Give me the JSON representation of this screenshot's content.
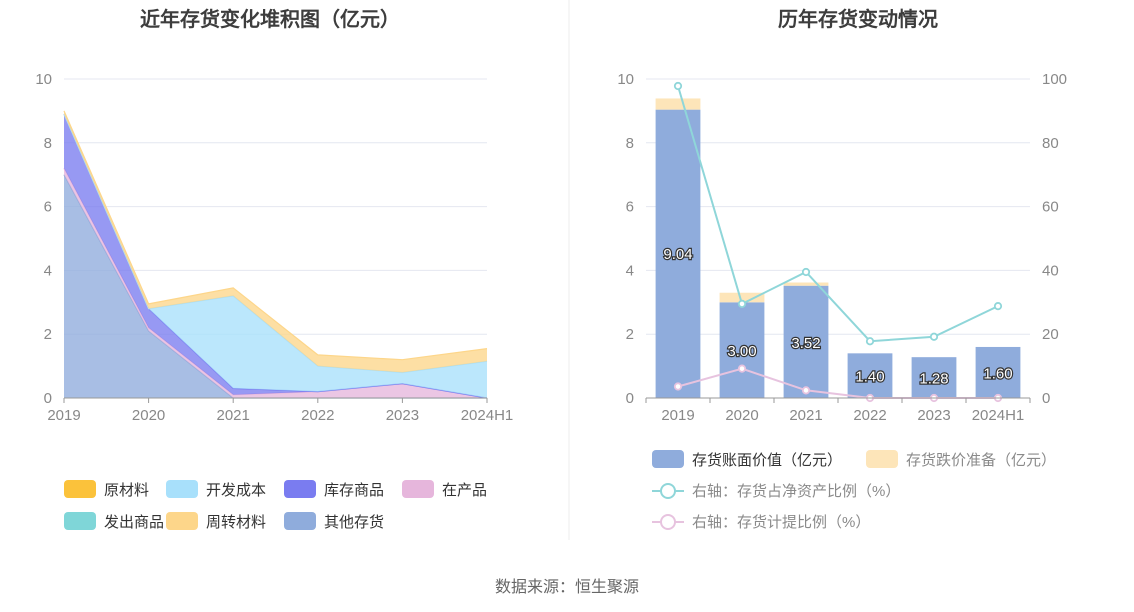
{
  "source": "数据来源：恒生聚源",
  "colors": {
    "raw_materials": "#fbc23b",
    "dev_cost": "#a8e0fb",
    "finished_goods": "#7a7cf0",
    "wip": "#e6b6dc",
    "shipped": "#7fd6d8",
    "turnover": "#fdd68a",
    "other": "#8facdc",
    "bar_book": "#8facdc",
    "bar_provision": "#fde5b9",
    "line_ratio": "#8fd6d9",
    "line_provision": "#e7c3df",
    "grid": "#e4e7f0",
    "axis": "#999999"
  },
  "chart_data": [
    {
      "type": "area",
      "title": "近年存货变化堆积图（亿元）",
      "categories": [
        "2019",
        "2020",
        "2021",
        "2022",
        "2023",
        "2024H1"
      ],
      "ylim": [
        0,
        10
      ],
      "yticks": [
        "0",
        "2",
        "4",
        "6",
        "8",
        "10"
      ],
      "stacked": true,
      "legend_position": "bottom",
      "series": [
        {
          "name": "其他存货",
          "color_key": "other",
          "values": [
            7.0,
            2.1,
            0.0,
            0.0,
            0.0,
            0.0
          ]
        },
        {
          "name": "发出商品",
          "color_key": "shipped",
          "values": [
            0.0,
            0.0,
            0.0,
            0.0,
            0.0,
            0.0
          ]
        },
        {
          "name": "在产品",
          "color_key": "wip",
          "values": [
            0.2,
            0.1,
            0.1,
            0.2,
            0.45,
            0.0
          ]
        },
        {
          "name": "库存商品",
          "color_key": "finished_goods",
          "values": [
            1.7,
            0.6,
            0.2,
            0.0,
            0.0,
            0.0
          ]
        },
        {
          "name": "开发成本",
          "color_key": "dev_cost",
          "values": [
            0.0,
            0.0,
            2.9,
            0.8,
            0.35,
            1.15
          ]
        },
        {
          "name": "周转材料",
          "color_key": "turnover",
          "values": [
            0.1,
            0.15,
            0.25,
            0.35,
            0.4,
            0.4
          ]
        },
        {
          "name": "原材料",
          "color_key": "raw_materials",
          "values": [
            0.0,
            0.0,
            0.0,
            0.0,
            0.0,
            0.0
          ]
        }
      ],
      "legend": [
        {
          "name": "原材料",
          "color_key": "raw_materials"
        },
        {
          "name": "开发成本",
          "color_key": "dev_cost"
        },
        {
          "name": "库存商品",
          "color_key": "finished_goods"
        },
        {
          "name": "在产品",
          "color_key": "wip"
        },
        {
          "name": "发出商品",
          "color_key": "shipped"
        },
        {
          "name": "周转材料",
          "color_key": "turnover"
        },
        {
          "name": "其他存货",
          "color_key": "other"
        }
      ]
    },
    {
      "type": "bar",
      "title": "历年存货变动情况",
      "categories": [
        "2019",
        "2020",
        "2021",
        "2022",
        "2023",
        "2024H1"
      ],
      "ylim": [
        0,
        10
      ],
      "yticks": [
        "0",
        "2",
        "4",
        "6",
        "8",
        "10"
      ],
      "y2lim": [
        0,
        100
      ],
      "y2ticks": [
        "0",
        "20",
        "40",
        "60",
        "80",
        "100"
      ],
      "stacked": true,
      "legend_position": "bottom",
      "series": [
        {
          "name": "存货账面价值（亿元）",
          "type": "bar",
          "axis": "left",
          "color_key": "bar_book",
          "values": [
            9.04,
            3.0,
            3.52,
            1.4,
            1.28,
            1.6
          ],
          "labels": [
            "9.04",
            "3.00",
            "3.52",
            "1.40",
            "1.28",
            "1.60"
          ]
        },
        {
          "name": "存货跌价准备（亿元）",
          "type": "bar",
          "axis": "left",
          "color_key": "bar_provision",
          "values": [
            0.35,
            0.3,
            0.1,
            0.0,
            0.0,
            0.0
          ]
        },
        {
          "name": "右轴：存货占净资产比例（%）",
          "type": "line",
          "axis": "right",
          "color_key": "line_ratio",
          "values": [
            97.8,
            29.5,
            39.5,
            17.8,
            19.2,
            28.8
          ]
        },
        {
          "name": "右轴：存货计提比例（%）",
          "type": "line",
          "axis": "right",
          "color_key": "line_provision",
          "values": [
            3.6,
            9.2,
            2.4,
            0.0,
            0.0,
            0.0
          ]
        }
      ]
    }
  ]
}
